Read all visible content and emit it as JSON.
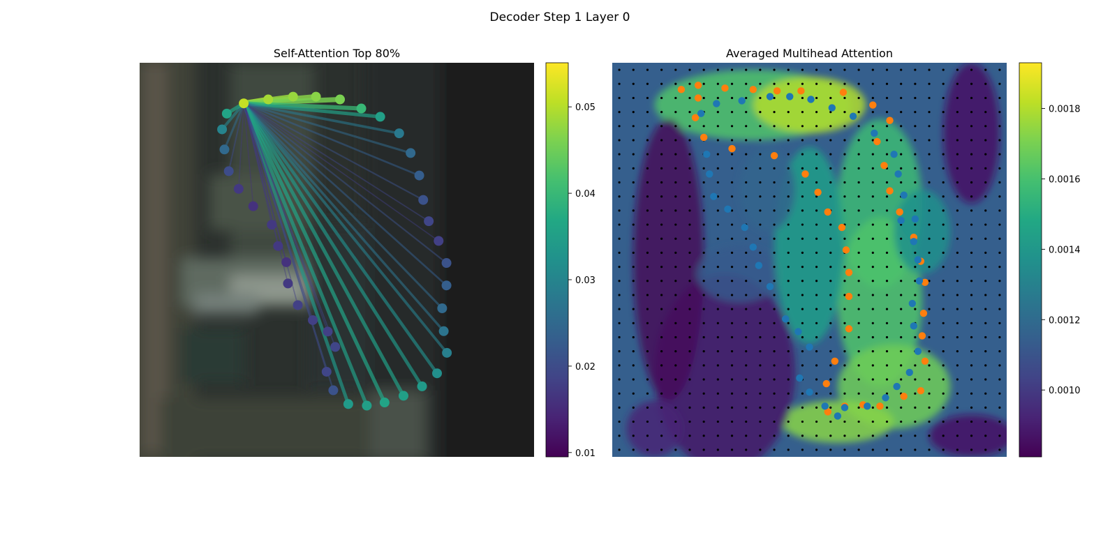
{
  "suptitle": "Decoder Step 1 Layer 0",
  "colors": {
    "orange": "#ff7f0e",
    "blue": "#1f77b4",
    "grid_dot": "#000000"
  },
  "chart_data": [
    {
      "type": "scatter",
      "title": "Self-Attention Top 80%",
      "xlabel": "",
      "ylabel": "",
      "xlim": [
        0,
        100
      ],
      "ylim": [
        100,
        0
      ],
      "colormap": "viridis",
      "background": "blurred grayscale photo",
      "colorbar": {
        "range": [
          0.0095,
          0.0551
        ],
        "ticks": [
          0.01,
          0.02,
          0.03,
          0.04,
          0.05
        ],
        "tick_labels": [
          "0.01",
          "0.02",
          "0.03",
          "0.04",
          "0.05"
        ]
      },
      "points": [
        {
          "x": 26.4,
          "y": 10.3,
          "v": 0.051
        },
        {
          "x": 32.6,
          "y": 9.3,
          "v": 0.049
        },
        {
          "x": 38.9,
          "y": 8.6,
          "v": 0.048
        },
        {
          "x": 44.7,
          "y": 8.6,
          "v": 0.047
        },
        {
          "x": 50.8,
          "y": 9.3,
          "v": 0.046
        },
        {
          "x": 56.2,
          "y": 11.6,
          "v": 0.04
        },
        {
          "x": 61.0,
          "y": 13.7,
          "v": 0.035
        },
        {
          "x": 65.8,
          "y": 17.9,
          "v": 0.028
        },
        {
          "x": 68.7,
          "y": 22.9,
          "v": 0.025
        },
        {
          "x": 70.9,
          "y": 28.6,
          "v": 0.023
        },
        {
          "x": 71.9,
          "y": 34.8,
          "v": 0.021
        },
        {
          "x": 73.3,
          "y": 40.2,
          "v": 0.019
        },
        {
          "x": 75.8,
          "y": 45.2,
          "v": 0.018
        },
        {
          "x": 77.8,
          "y": 50.8,
          "v": 0.021
        },
        {
          "x": 77.8,
          "y": 56.5,
          "v": 0.023
        },
        {
          "x": 76.7,
          "y": 62.3,
          "v": 0.025
        },
        {
          "x": 77.1,
          "y": 68.1,
          "v": 0.027
        },
        {
          "x": 77.9,
          "y": 73.6,
          "v": 0.029
        },
        {
          "x": 75.4,
          "y": 78.8,
          "v": 0.032
        },
        {
          "x": 71.6,
          "y": 82.1,
          "v": 0.034
        },
        {
          "x": 66.9,
          "y": 84.5,
          "v": 0.035
        },
        {
          "x": 62.1,
          "y": 86.2,
          "v": 0.036
        },
        {
          "x": 57.6,
          "y": 87.0,
          "v": 0.035
        },
        {
          "x": 52.9,
          "y": 86.6,
          "v": 0.034
        },
        {
          "x": 49.1,
          "y": 83.1,
          "v": 0.021
        },
        {
          "x": 47.4,
          "y": 78.4,
          "v": 0.019
        },
        {
          "x": 49.6,
          "y": 72.1,
          "v": 0.019
        },
        {
          "x": 47.7,
          "y": 68.2,
          "v": 0.018
        },
        {
          "x": 43.9,
          "y": 65.3,
          "v": 0.018
        },
        {
          "x": 40.1,
          "y": 61.5,
          "v": 0.018
        },
        {
          "x": 37.6,
          "y": 56.0,
          "v": 0.017
        },
        {
          "x": 37.2,
          "y": 50.6,
          "v": 0.016
        },
        {
          "x": 35.1,
          "y": 46.5,
          "v": 0.017
        },
        {
          "x": 33.5,
          "y": 41.1,
          "v": 0.017
        },
        {
          "x": 28.8,
          "y": 36.4,
          "v": 0.016
        },
        {
          "x": 25.1,
          "y": 32.0,
          "v": 0.017
        },
        {
          "x": 22.6,
          "y": 27.5,
          "v": 0.02
        },
        {
          "x": 21.5,
          "y": 22.0,
          "v": 0.025
        },
        {
          "x": 20.9,
          "y": 16.9,
          "v": 0.03
        },
        {
          "x": 22.1,
          "y": 12.9,
          "v": 0.036
        }
      ],
      "connections_from_point": 0
    },
    {
      "type": "heatmap",
      "title": "Averaged Multihead Attention",
      "xlabel": "",
      "ylabel": "",
      "xlim": [
        0,
        28
      ],
      "ylim": [
        28,
        0
      ],
      "colormap": "viridis",
      "grid_size": [
        28,
        28
      ],
      "colorbar": {
        "range": [
          0.00081,
          0.00193
        ],
        "ticks": [
          0.001,
          0.0012,
          0.0014,
          0.0016,
          0.0018
        ],
        "tick_labels": [
          "0.0010",
          "0.0012",
          "0.0014",
          "0.0016",
          "0.0018"
        ]
      },
      "series": [
        {
          "color": "#ff7f0e",
          "points": [
            [
              4.9,
              1.9
            ],
            [
              6.1,
              1.6
            ],
            [
              8.0,
              1.8
            ],
            [
              10.0,
              1.9
            ],
            [
              11.7,
              2.0
            ],
            [
              13.4,
              2.0
            ],
            [
              16.4,
              2.1
            ],
            [
              6.1,
              2.5
            ],
            [
              18.5,
              3.0
            ],
            [
              5.9,
              3.9
            ],
            [
              19.7,
              4.1
            ],
            [
              6.5,
              5.3
            ],
            [
              8.5,
              6.1
            ],
            [
              11.5,
              6.6
            ],
            [
              18.8,
              5.6
            ],
            [
              19.3,
              7.3
            ],
            [
              13.7,
              7.9
            ],
            [
              19.7,
              9.1
            ],
            [
              14.6,
              9.2
            ],
            [
              15.3,
              10.6
            ],
            [
              20.4,
              10.6
            ],
            [
              16.3,
              11.7
            ],
            [
              21.4,
              12.4
            ],
            [
              16.6,
              13.3
            ],
            [
              21.9,
              14.1
            ],
            [
              16.8,
              14.9
            ],
            [
              22.2,
              15.6
            ],
            [
              16.8,
              16.6
            ],
            [
              22.1,
              17.8
            ],
            [
              16.8,
              18.9
            ],
            [
              22.0,
              19.4
            ],
            [
              15.8,
              21.2
            ],
            [
              22.2,
              21.2
            ],
            [
              15.2,
              22.8
            ],
            [
              21.9,
              23.3
            ],
            [
              20.7,
              23.7
            ],
            [
              19.0,
              24.4
            ],
            [
              15.3,
              24.8
            ],
            [
              16.5,
              24.4
            ],
            [
              17.8,
              24.3
            ]
          ]
        },
        {
          "color": "#1f77b4",
          "points": [
            [
              11.2,
              2.4
            ],
            [
              12.6,
              2.4
            ],
            [
              14.1,
              2.6
            ],
            [
              15.6,
              3.2
            ],
            [
              9.2,
              2.7
            ],
            [
              7.4,
              2.9
            ],
            [
              6.3,
              3.6
            ],
            [
              17.1,
              3.8
            ],
            [
              18.6,
              5.0
            ],
            [
              20.0,
              6.5
            ],
            [
              6.7,
              6.5
            ],
            [
              20.3,
              7.9
            ],
            [
              6.9,
              7.9
            ],
            [
              20.7,
              9.4
            ],
            [
              7.2,
              9.5
            ],
            [
              8.2,
              10.4
            ],
            [
              20.5,
              11.2
            ],
            [
              21.4,
              12.7
            ],
            [
              9.4,
              11.7
            ],
            [
              10.0,
              13.1
            ],
            [
              21.7,
              14.0
            ],
            [
              10.4,
              14.4
            ],
            [
              21.8,
              15.5
            ],
            [
              11.2,
              15.9
            ],
            [
              21.3,
              17.1
            ],
            [
              12.3,
              18.2
            ],
            [
              21.4,
              18.7
            ],
            [
              13.2,
              19.1
            ],
            [
              21.7,
              20.5
            ],
            [
              14.0,
              20.2
            ],
            [
              21.1,
              22.0
            ],
            [
              13.3,
              22.4
            ],
            [
              20.2,
              23.0
            ],
            [
              14.0,
              23.4
            ],
            [
              15.1,
              24.4
            ],
            [
              16.5,
              24.5
            ],
            [
              18.1,
              24.4
            ],
            [
              19.4,
              23.8
            ],
            [
              21.5,
              11.1
            ],
            [
              16.0,
              25.1
            ]
          ]
        }
      ]
    }
  ]
}
